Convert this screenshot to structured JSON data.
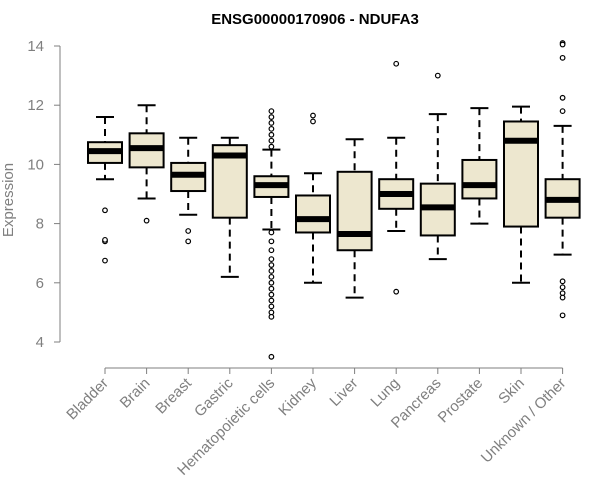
{
  "chart_data": {
    "type": "boxplot",
    "title": "ENSG00000170906 - NDUFA3",
    "ylabel": "Expression",
    "xlabel": "",
    "ylim": [
      3.4,
      14.4
    ],
    "yticks": [
      4,
      6,
      8,
      10,
      12,
      14
    ],
    "box_fill": "#ede7cf",
    "categories": [
      "Bladder",
      "Brain",
      "Breast",
      "Gastric",
      "Hematopoietic cells",
      "Kidney",
      "Liver",
      "Lung",
      "Pancreas",
      "Prostate",
      "Skin",
      "Unknown / Other"
    ],
    "boxes": [
      {
        "whisker_low": 9.5,
        "q1": 10.05,
        "median": 10.45,
        "q3": 10.75,
        "whisker_high": 11.6,
        "outliers": [
          8.45,
          7.4,
          7.45,
          6.75
        ]
      },
      {
        "whisker_low": 8.85,
        "q1": 9.9,
        "median": 10.55,
        "q3": 11.05,
        "whisker_high": 12.0,
        "outliers": [
          8.1
        ]
      },
      {
        "whisker_low": 8.3,
        "q1": 9.1,
        "median": 9.65,
        "q3": 10.05,
        "whisker_high": 10.9,
        "outliers": [
          7.75,
          7.4
        ]
      },
      {
        "whisker_low": 6.2,
        "q1": 8.2,
        "median": 10.3,
        "q3": 10.65,
        "whisker_high": 10.9,
        "outliers": []
      },
      {
        "whisker_low": 7.8,
        "q1": 8.9,
        "median": 9.3,
        "q3": 9.6,
        "whisker_high": 10.5,
        "outliers": [
          11.8,
          11.6,
          11.4,
          11.2,
          11.0,
          10.8,
          10.6,
          7.7,
          7.4,
          7.1,
          6.8,
          6.6,
          6.4,
          6.2,
          6.0,
          5.8,
          5.6,
          5.4,
          5.2,
          5.0,
          4.85,
          3.5
        ]
      },
      {
        "whisker_low": 6.0,
        "q1": 7.7,
        "median": 8.15,
        "q3": 8.95,
        "whisker_high": 9.7,
        "outliers": [
          11.65,
          11.45
        ]
      },
      {
        "whisker_low": 5.5,
        "q1": 7.1,
        "median": 7.65,
        "q3": 9.75,
        "whisker_high": 10.85,
        "outliers": []
      },
      {
        "whisker_low": 7.75,
        "q1": 8.5,
        "median": 9.0,
        "q3": 9.5,
        "whisker_high": 10.9,
        "outliers": [
          13.4,
          5.7
        ]
      },
      {
        "whisker_low": 6.8,
        "q1": 7.6,
        "median": 8.55,
        "q3": 9.35,
        "whisker_high": 11.7,
        "outliers": [
          13.0
        ]
      },
      {
        "whisker_low": 8.0,
        "q1": 8.85,
        "median": 9.3,
        "q3": 10.15,
        "whisker_high": 11.9,
        "outliers": []
      },
      {
        "whisker_low": 6.0,
        "q1": 7.9,
        "median": 10.8,
        "q3": 11.45,
        "whisker_high": 11.95,
        "outliers": []
      },
      {
        "whisker_low": 6.95,
        "q1": 8.2,
        "median": 8.8,
        "q3": 9.5,
        "whisker_high": 11.3,
        "outliers": [
          14.1,
          14.05,
          13.6,
          12.25,
          11.8,
          6.05,
          5.85,
          5.65,
          5.5,
          4.9
        ]
      }
    ]
  }
}
